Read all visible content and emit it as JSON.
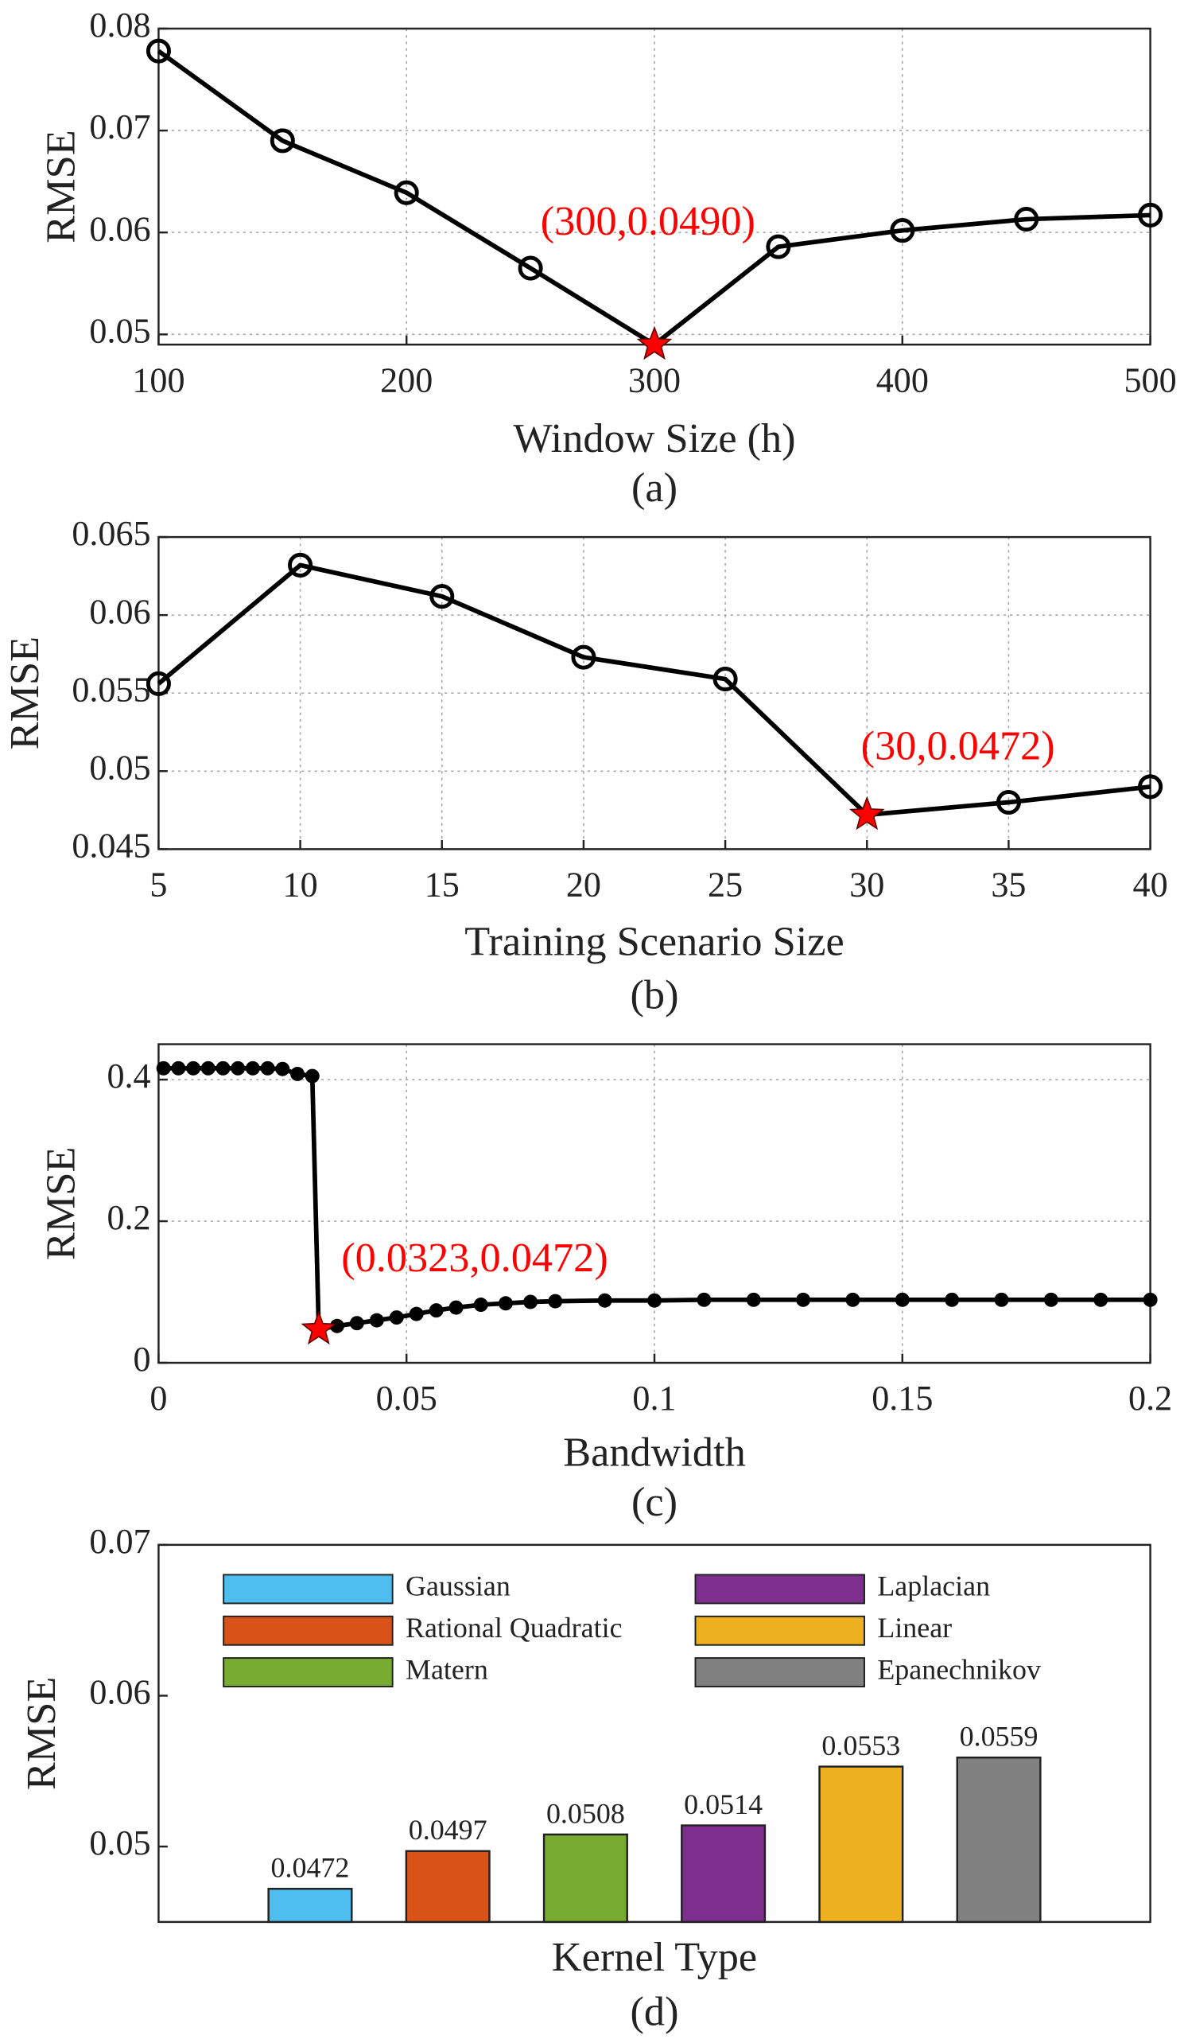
{
  "chart_data": [
    {
      "type": "line",
      "marker": "circle",
      "color": "#000000",
      "highlight_color": "#ff0000",
      "x": [
        100,
        150,
        200,
        250,
        300,
        350,
        400,
        450,
        500
      ],
      "values": [
        0.0778,
        0.069,
        0.0639,
        0.0565,
        0.049,
        0.0586,
        0.0602,
        0.0613,
        0.0617
      ],
      "xlim": [
        100,
        500
      ],
      "ylim": [
        0.049,
        0.08
      ],
      "xticks": [
        100,
        200,
        300,
        400,
        500
      ],
      "yticks": [
        0.05,
        0.06,
        0.07,
        0.08
      ],
      "grid": true,
      "xlabel": "Window Size (h)",
      "ylabel": "RMSE",
      "annotation": "(300,0.0490)",
      "caption": "(a)"
    },
    {
      "type": "line",
      "marker": "circle",
      "color": "#000000",
      "highlight_color": "#ff0000",
      "x": [
        5,
        10,
        15,
        20,
        25,
        30,
        35,
        40
      ],
      "values": [
        0.0556,
        0.0632,
        0.0612,
        0.0573,
        0.0559,
        0.0472,
        0.048,
        0.049
      ],
      "xlim": [
        5,
        40
      ],
      "ylim": [
        0.045,
        0.065
      ],
      "xticks": [
        5,
        10,
        15,
        20,
        25,
        30,
        35,
        40
      ],
      "yticks": [
        0.045,
        0.05,
        0.055,
        0.06,
        0.065
      ],
      "grid": true,
      "xlabel": "Training Scenario Size",
      "ylabel": "RMSE",
      "annotation": "(30,0.0472)",
      "caption": "(b)"
    },
    {
      "type": "line",
      "marker": "dot",
      "color": "#000000",
      "highlight_color": "#ff0000",
      "x": [
        0.001,
        0.004,
        0.007,
        0.01,
        0.013,
        0.016,
        0.019,
        0.022,
        0.025,
        0.028,
        0.031,
        0.0323,
        0.036,
        0.04,
        0.044,
        0.048,
        0.052,
        0.056,
        0.06,
        0.065,
        0.07,
        0.075,
        0.08,
        0.09,
        0.1,
        0.11,
        0.12,
        0.13,
        0.14,
        0.15,
        0.16,
        0.17,
        0.18,
        0.19,
        0.2
      ],
      "values": [
        0.416,
        0.416,
        0.416,
        0.416,
        0.416,
        0.416,
        0.416,
        0.416,
        0.415,
        0.408,
        0.405,
        0.0472,
        0.052,
        0.056,
        0.06,
        0.064,
        0.069,
        0.074,
        0.078,
        0.082,
        0.084,
        0.086,
        0.087,
        0.088,
        0.088,
        0.089,
        0.089,
        0.089,
        0.089,
        0.089,
        0.089,
        0.089,
        0.089,
        0.089,
        0.089
      ],
      "xlim": [
        0,
        0.2
      ],
      "ylim": [
        0,
        0.45
      ],
      "xticks": [
        0,
        0.05,
        0.1,
        0.15,
        0.2
      ],
      "yticks": [
        0,
        0.2,
        0.4
      ],
      "grid": true,
      "xlabel": "Bandwidth",
      "ylabel": "RMSE",
      "annotation": "(0.0323,0.0472)",
      "caption": "(c)"
    },
    {
      "type": "bar",
      "categories": [
        "Gaussian",
        "Rational Quadratic",
        "Matern",
        "Laplacian",
        "Linear",
        "Epanechnikov"
      ],
      "values": [
        0.0472,
        0.0497,
        0.0508,
        0.0514,
        0.0553,
        0.0559
      ],
      "colors": [
        "#4dbeee",
        "#d95319",
        "#77ac30",
        "#7e2f8e",
        "#edb120",
        "#808080"
      ],
      "ylim": [
        0.045,
        0.07
      ],
      "yticks": [
        0.05,
        0.06,
        0.07
      ],
      "grid": false,
      "xlabel": "Kernel Type",
      "ylabel": "RMSE",
      "caption": "(d)"
    }
  ]
}
